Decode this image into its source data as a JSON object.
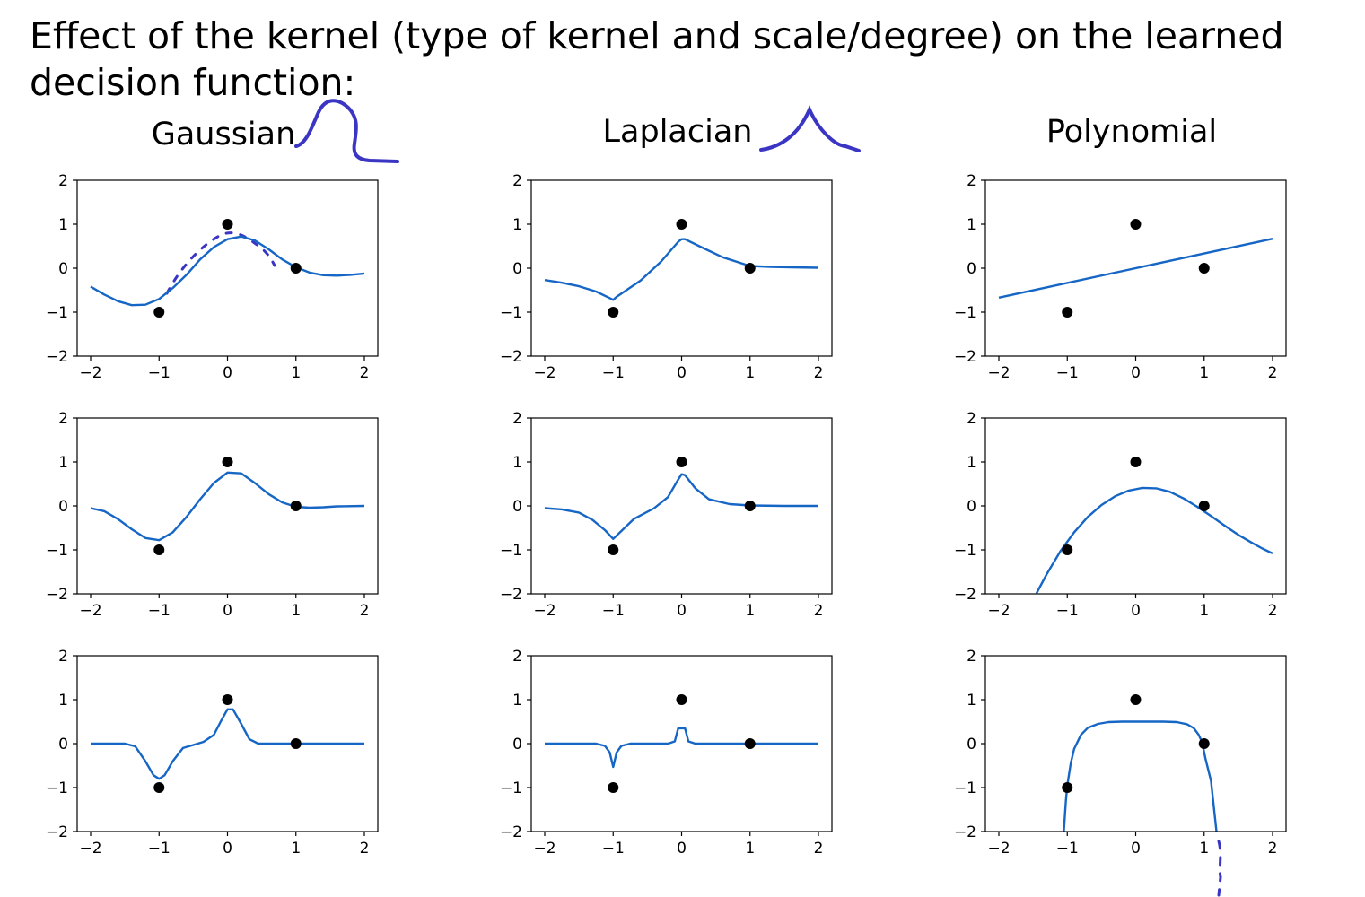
{
  "slide": {
    "title": "Effect of the kernel (type of kernel and scale/degree) on the learned decision function:"
  },
  "columns": [
    "Gaussian",
    "Laplacian",
    "Polynomial"
  ],
  "colors": {
    "curve": "#1666c5",
    "points": "#000000",
    "ink": "#3b35c4",
    "axes": "#000000"
  },
  "chart_data": [
    {
      "type": "line",
      "kernel": "Gaussian",
      "row": 1,
      "xlim": [
        -2,
        2
      ],
      "ylim": [
        -2,
        2
      ],
      "xticks": [
        -2,
        -1,
        0,
        1,
        2
      ],
      "yticks": [
        -2,
        -1,
        0,
        1,
        2
      ],
      "xtick_labels": [
        "−2",
        "−1",
        "0",
        "1",
        "2"
      ],
      "ytick_labels": [
        "−2",
        "−1",
        "0",
        "1",
        "2"
      ],
      "points": [
        [
          -1,
          -1
        ],
        [
          0,
          1
        ],
        [
          1,
          0
        ]
      ],
      "curve": [
        [
          -2,
          -0.42
        ],
        [
          -1.8,
          -0.6
        ],
        [
          -1.6,
          -0.75
        ],
        [
          -1.4,
          -0.84
        ],
        [
          -1.2,
          -0.83
        ],
        [
          -1.0,
          -0.7
        ],
        [
          -0.8,
          -0.45
        ],
        [
          -0.6,
          -0.15
        ],
        [
          -0.4,
          0.2
        ],
        [
          -0.2,
          0.48
        ],
        [
          0,
          0.66
        ],
        [
          0.2,
          0.72
        ],
        [
          0.4,
          0.63
        ],
        [
          0.6,
          0.43
        ],
        [
          0.8,
          0.2
        ],
        [
          1.0,
          0.02
        ],
        [
          1.2,
          -0.1
        ],
        [
          1.4,
          -0.16
        ],
        [
          1.6,
          -0.17
        ],
        [
          1.8,
          -0.15
        ],
        [
          2.0,
          -0.12
        ]
      ]
    },
    {
      "type": "line",
      "kernel": "Gaussian",
      "row": 2,
      "xlim": [
        -2,
        2
      ],
      "ylim": [
        -2,
        2
      ],
      "xticks": [
        -2,
        -1,
        0,
        1,
        2
      ],
      "yticks": [
        -2,
        -1,
        0,
        1,
        2
      ],
      "xtick_labels": [
        "−2",
        "−1",
        "0",
        "1",
        "2"
      ],
      "ytick_labels": [
        "−2",
        "−1",
        "0",
        "1",
        "2"
      ],
      "points": [
        [
          -1,
          -1
        ],
        [
          0,
          1
        ],
        [
          1,
          0
        ]
      ],
      "curve": [
        [
          -2,
          -0.05
        ],
        [
          -1.8,
          -0.12
        ],
        [
          -1.6,
          -0.3
        ],
        [
          -1.4,
          -0.53
        ],
        [
          -1.2,
          -0.73
        ],
        [
          -1.0,
          -0.78
        ],
        [
          -0.8,
          -0.6
        ],
        [
          -0.6,
          -0.25
        ],
        [
          -0.4,
          0.15
        ],
        [
          -0.2,
          0.52
        ],
        [
          0,
          0.76
        ],
        [
          0.2,
          0.74
        ],
        [
          0.4,
          0.52
        ],
        [
          0.6,
          0.27
        ],
        [
          0.8,
          0.08
        ],
        [
          1.0,
          -0.02
        ],
        [
          1.2,
          -0.04
        ],
        [
          1.4,
          -0.03
        ],
        [
          1.6,
          -0.01
        ],
        [
          2.0,
          0
        ]
      ]
    },
    {
      "type": "line",
      "kernel": "Gaussian",
      "row": 3,
      "xlim": [
        -2,
        2
      ],
      "ylim": [
        -2,
        2
      ],
      "xticks": [
        -2,
        -1,
        0,
        1,
        2
      ],
      "yticks": [
        -2,
        -1,
        0,
        1,
        2
      ],
      "xtick_labels": [
        "−2",
        "−1",
        "0",
        "1",
        "2"
      ],
      "ytick_labels": [
        "−2",
        "−1",
        "0",
        "1",
        "2"
      ],
      "points": [
        [
          -1,
          -1
        ],
        [
          0,
          1
        ],
        [
          1,
          0
        ]
      ],
      "curve": [
        [
          -2,
          0
        ],
        [
          -1.5,
          0
        ],
        [
          -1.35,
          -0.06
        ],
        [
          -1.2,
          -0.4
        ],
        [
          -1.08,
          -0.72
        ],
        [
          -1.0,
          -0.8
        ],
        [
          -0.92,
          -0.72
        ],
        [
          -0.8,
          -0.4
        ],
        [
          -0.65,
          -0.1
        ],
        [
          -0.5,
          -0.03
        ],
        [
          -0.35,
          0.04
        ],
        [
          -0.2,
          0.2
        ],
        [
          -0.1,
          0.5
        ],
        [
          0,
          0.78
        ],
        [
          0.08,
          0.78
        ],
        [
          0.2,
          0.45
        ],
        [
          0.32,
          0.1
        ],
        [
          0.45,
          0
        ],
        [
          0.6,
          0
        ],
        [
          1.0,
          0
        ],
        [
          2.0,
          0
        ]
      ]
    },
    {
      "type": "line",
      "kernel": "Laplacian",
      "row": 1,
      "xlim": [
        -2,
        2
      ],
      "ylim": [
        -2,
        2
      ],
      "xticks": [
        -2,
        -1,
        0,
        1,
        2
      ],
      "yticks": [
        -2,
        -1,
        0,
        1,
        2
      ],
      "xtick_labels": [
        "−2",
        "−1",
        "0",
        "1",
        "2"
      ],
      "ytick_labels": [
        "−2",
        "−1",
        "0",
        "1",
        "2"
      ],
      "points": [
        [
          -1,
          -1
        ],
        [
          0,
          1
        ],
        [
          1,
          0
        ]
      ],
      "curve": [
        [
          -2,
          -0.27
        ],
        [
          -1.75,
          -0.33
        ],
        [
          -1.5,
          -0.41
        ],
        [
          -1.25,
          -0.53
        ],
        [
          -1.05,
          -0.68
        ],
        [
          -1.0,
          -0.72
        ],
        [
          -0.95,
          -0.65
        ],
        [
          -0.6,
          -0.28
        ],
        [
          -0.3,
          0.15
        ],
        [
          -0.05,
          0.6
        ],
        [
          0,
          0.66
        ],
        [
          0.05,
          0.66
        ],
        [
          0.3,
          0.47
        ],
        [
          0.6,
          0.25
        ],
        [
          0.9,
          0.1
        ],
        [
          1.0,
          0.05
        ],
        [
          1.3,
          0.03
        ],
        [
          1.6,
          0.02
        ],
        [
          2.0,
          0.01
        ]
      ]
    },
    {
      "type": "line",
      "kernel": "Laplacian",
      "row": 2,
      "xlim": [
        -2,
        2
      ],
      "ylim": [
        -2,
        2
      ],
      "xticks": [
        -2,
        -1,
        0,
        1,
        2
      ],
      "yticks": [
        -2,
        -1,
        0,
        1,
        2
      ],
      "xtick_labels": [
        "−2",
        "−1",
        "0",
        "1",
        "2"
      ],
      "ytick_labels": [
        "−2",
        "−1",
        "0",
        "1",
        "2"
      ],
      "points": [
        [
          -1,
          -1
        ],
        [
          0,
          1
        ],
        [
          1,
          0
        ]
      ],
      "curve": [
        [
          -2,
          -0.05
        ],
        [
          -1.75,
          -0.08
        ],
        [
          -1.5,
          -0.15
        ],
        [
          -1.3,
          -0.32
        ],
        [
          -1.12,
          -0.55
        ],
        [
          -1.0,
          -0.75
        ],
        [
          -0.9,
          -0.6
        ],
        [
          -0.7,
          -0.3
        ],
        [
          -0.4,
          -0.05
        ],
        [
          -0.2,
          0.2
        ],
        [
          -0.05,
          0.6
        ],
        [
          0,
          0.72
        ],
        [
          0.05,
          0.7
        ],
        [
          0.2,
          0.4
        ],
        [
          0.4,
          0.15
        ],
        [
          0.7,
          0.04
        ],
        [
          1.0,
          0.01
        ],
        [
          1.5,
          0
        ],
        [
          2.0,
          0
        ]
      ]
    },
    {
      "type": "line",
      "kernel": "Laplacian",
      "row": 3,
      "xlim": [
        -2,
        2
      ],
      "ylim": [
        -2,
        2
      ],
      "xticks": [
        -2,
        -1,
        0,
        1,
        2
      ],
      "yticks": [
        -2,
        -1,
        0,
        1,
        2
      ],
      "xtick_labels": [
        "−2",
        "−1",
        "0",
        "1",
        "2"
      ],
      "ytick_labels": [
        "−2",
        "−1",
        "0",
        "1",
        "2"
      ],
      "points": [
        [
          -1,
          -1
        ],
        [
          0,
          1
        ],
        [
          1,
          0
        ]
      ],
      "curve": [
        [
          -2,
          0
        ],
        [
          -1.25,
          0
        ],
        [
          -1.12,
          -0.05
        ],
        [
          -1.05,
          -0.2
        ],
        [
          -1.0,
          -0.53
        ],
        [
          -0.95,
          -0.2
        ],
        [
          -0.88,
          -0.05
        ],
        [
          -0.75,
          0
        ],
        [
          -0.2,
          0
        ],
        [
          -0.1,
          0.05
        ],
        [
          -0.05,
          0.35
        ],
        [
          0.05,
          0.35
        ],
        [
          0.1,
          0.05
        ],
        [
          0.2,
          0
        ],
        [
          1.0,
          0
        ],
        [
          2.0,
          0
        ]
      ]
    },
    {
      "type": "line",
      "kernel": "Polynomial",
      "row": 1,
      "xlim": [
        -2,
        2
      ],
      "ylim": [
        -2,
        2
      ],
      "xticks": [
        -2,
        -1,
        0,
        1,
        2
      ],
      "yticks": [
        -2,
        -1,
        0,
        1,
        2
      ],
      "xtick_labels": [
        "−2",
        "−1",
        "0",
        "1",
        "2"
      ],
      "ytick_labels": [
        "−2",
        "−1",
        "0",
        "1",
        "2"
      ],
      "points": [
        [
          -1,
          -1
        ],
        [
          0,
          1
        ],
        [
          1,
          0
        ]
      ],
      "curve": [
        [
          -2,
          -0.67
        ],
        [
          2,
          0.67
        ]
      ]
    },
    {
      "type": "line",
      "kernel": "Polynomial",
      "row": 2,
      "xlim": [
        -2,
        2
      ],
      "ylim": [
        -2,
        2
      ],
      "xticks": [
        -2,
        -1,
        0,
        1,
        2
      ],
      "yticks": [
        -2,
        -1,
        0,
        1,
        2
      ],
      "xtick_labels": [
        "−2",
        "−1",
        "0",
        "1",
        "2"
      ],
      "ytick_labels": [
        "−2",
        "−1",
        "0",
        "1",
        "2"
      ],
      "points": [
        [
          -1,
          -1
        ],
        [
          0,
          1
        ],
        [
          1,
          0
        ]
      ],
      "curve": [
        [
          -1.45,
          -1.99
        ],
        [
          -1.3,
          -1.55
        ],
        [
          -1.1,
          -1.03
        ],
        [
          -0.9,
          -0.6
        ],
        [
          -0.7,
          -0.25
        ],
        [
          -0.5,
          0.02
        ],
        [
          -0.3,
          0.22
        ],
        [
          -0.1,
          0.35
        ],
        [
          0.1,
          0.41
        ],
        [
          0.3,
          0.4
        ],
        [
          0.5,
          0.32
        ],
        [
          0.7,
          0.17
        ],
        [
          0.9,
          -0.02
        ],
        [
          1.1,
          -0.23
        ],
        [
          1.3,
          -0.45
        ],
        [
          1.5,
          -0.66
        ],
        [
          1.7,
          -0.84
        ],
        [
          1.85,
          -0.97
        ],
        [
          2.0,
          -1.08
        ]
      ]
    },
    {
      "type": "line",
      "kernel": "Polynomial",
      "row": 3,
      "xlim": [
        -2,
        2
      ],
      "ylim": [
        -2,
        2
      ],
      "xticks": [
        -2,
        -1,
        0,
        1,
        2
      ],
      "yticks": [
        -2,
        -1,
        0,
        1,
        2
      ],
      "xtick_labels": [
        "−2",
        "−1",
        "0",
        "1",
        "2"
      ],
      "ytick_labels": [
        "−2",
        "−1",
        "0",
        "1",
        "2"
      ],
      "points": [
        [
          -1,
          -1
        ],
        [
          0,
          1
        ],
        [
          1,
          0
        ]
      ],
      "curve": [
        [
          -1.05,
          -2
        ],
        [
          -1.02,
          -1.3
        ],
        [
          -1.0,
          -0.95
        ],
        [
          -0.95,
          -0.45
        ],
        [
          -0.9,
          -0.12
        ],
        [
          -0.8,
          0.2
        ],
        [
          -0.7,
          0.36
        ],
        [
          -0.55,
          0.45
        ],
        [
          -0.4,
          0.49
        ],
        [
          -0.2,
          0.5
        ],
        [
          0.4,
          0.5
        ],
        [
          0.6,
          0.49
        ],
        [
          0.75,
          0.44
        ],
        [
          0.85,
          0.35
        ],
        [
          0.92,
          0.2
        ],
        [
          0.97,
          0.03
        ],
        [
          1.02,
          -0.35
        ],
        [
          1.1,
          -0.85
        ],
        [
          1.18,
          -2
        ]
      ]
    }
  ]
}
